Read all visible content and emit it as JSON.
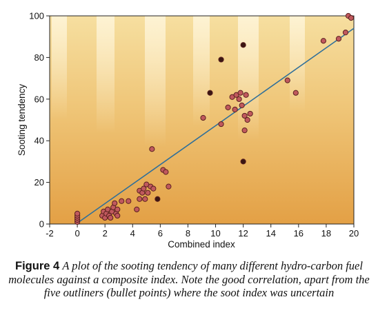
{
  "chart_data": {
    "type": "scatter",
    "title": "",
    "xlabel": "Combined index",
    "ylabel": "Sooting tendency",
    "xlim": [
      -2,
      20
    ],
    "ylim": [
      0,
      100
    ],
    "x_ticks": [
      "-2",
      "0",
      "2",
      "4",
      "6",
      "8",
      "10",
      "12",
      "14",
      "16",
      "18",
      "20"
    ],
    "y_ticks": [
      "0",
      "20",
      "40",
      "60",
      "80",
      "100"
    ],
    "grid": false,
    "background": "orange-gradient",
    "colors": {
      "point_fill": "#c0595d",
      "point_stroke": "#5a2020",
      "outlier_fill": "#3a1612",
      "trend_line": "#2f6f9a",
      "bg_top": "#f6dfa0",
      "bg_bottom": "#e3a045"
    },
    "series": [
      {
        "marker": "open-circle",
        "points": [
          [
            0,
            1
          ],
          [
            0,
            2
          ],
          [
            0,
            3
          ],
          [
            0,
            4
          ],
          [
            0,
            5
          ],
          [
            1.8,
            4
          ],
          [
            1.9,
            6
          ],
          [
            2.0,
            3
          ],
          [
            2.1,
            5
          ],
          [
            2.2,
            7
          ],
          [
            2.3,
            4
          ],
          [
            2.4,
            3
          ],
          [
            2.5,
            6
          ],
          [
            2.6,
            8
          ],
          [
            2.7,
            10
          ],
          [
            2.8,
            5
          ],
          [
            2.9,
            4
          ],
          [
            2.9,
            7
          ],
          [
            3.2,
            11
          ],
          [
            3.7,
            11
          ],
          [
            4.3,
            7
          ],
          [
            4.5,
            12
          ],
          [
            4.5,
            16
          ],
          [
            4.7,
            15
          ],
          [
            4.8,
            17
          ],
          [
            4.9,
            12
          ],
          [
            5.0,
            19
          ],
          [
            5.1,
            15
          ],
          [
            5.3,
            18
          ],
          [
            5.5,
            17
          ],
          [
            5.4,
            36
          ],
          [
            6.2,
            26
          ],
          [
            6.4,
            25
          ],
          [
            6.6,
            18
          ],
          [
            9.1,
            51
          ],
          [
            10.4,
            48
          ],
          [
            10.9,
            56
          ],
          [
            11.2,
            61
          ],
          [
            11.4,
            55
          ],
          [
            11.5,
            62
          ],
          [
            11.7,
            60
          ],
          [
            11.8,
            63
          ],
          [
            11.9,
            57
          ],
          [
            12.1,
            45
          ],
          [
            12.1,
            52
          ],
          [
            12.2,
            62
          ],
          [
            12.3,
            50
          ],
          [
            12.5,
            53
          ],
          [
            15.2,
            69
          ],
          [
            15.8,
            63
          ],
          [
            17.8,
            88
          ],
          [
            18.9,
            89
          ],
          [
            19.4,
            92
          ],
          [
            19.6,
            100
          ],
          [
            19.8,
            99
          ]
        ]
      },
      {
        "name": "",
        "marker": "filled-circle",
        "points": [
          [
            5.8,
            12
          ],
          [
            9.6,
            63
          ],
          [
            10.4,
            79
          ],
          [
            12.0,
            86
          ],
          [
            12.0,
            30
          ]
        ]
      }
    ],
    "trend_line": {
      "x": [
        -0.1,
        20
      ],
      "y": [
        0,
        94
      ]
    }
  },
  "caption": {
    "label": "Figure 4",
    "text": "A plot of the sooting tendency of many different hydro-carbon fuel molecules against a composite index. Note the good correlation, apart from the five outliners (bullet points) where the soot index was uncertain"
  }
}
